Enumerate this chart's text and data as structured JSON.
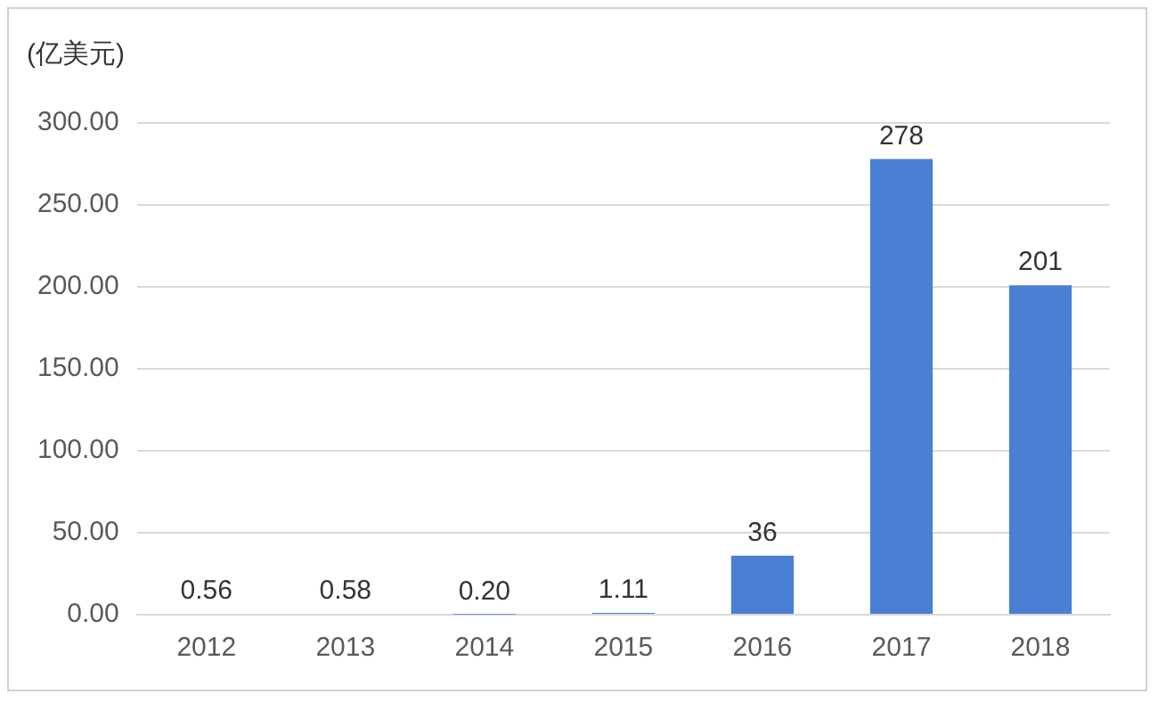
{
  "chart_data": {
    "type": "bar",
    "ylabel": "(亿美元)",
    "categories": [
      "2012",
      "2013",
      "2014",
      "2015",
      "2016",
      "2017",
      "2018"
    ],
    "values": [
      0.56,
      0.58,
      0.2,
      1.11,
      36,
      278,
      201
    ],
    "value_labels": [
      "0.56",
      "0.58",
      "0.20",
      "1.11",
      "36",
      "278",
      "201"
    ],
    "color": "#4a7fd4",
    "ylim": [
      0,
      300
    ],
    "yticks": [
      {
        "value": 0,
        "label": "0.00"
      },
      {
        "value": 50,
        "label": "50.00"
      },
      {
        "value": 100,
        "label": "100.00"
      },
      {
        "value": 150,
        "label": "150.00"
      },
      {
        "value": 200,
        "label": "200.00"
      },
      {
        "value": 250,
        "label": "250.00"
      },
      {
        "value": 300,
        "label": "300.00"
      }
    ],
    "grid": "y",
    "legend": false
  }
}
